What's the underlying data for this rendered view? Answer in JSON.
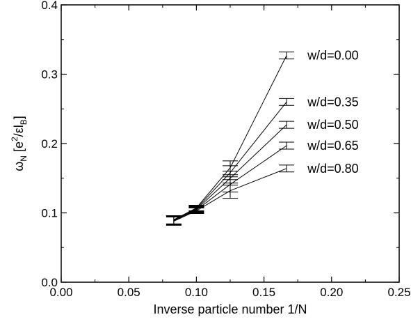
{
  "chart_data": {
    "type": "line",
    "xlabel": "Inverse particle number 1/N",
    "ylabel": {
      "base": "ω",
      "base_sub": "N",
      "open": " [e",
      "sup": "2",
      "mid": "/εl",
      "sub": "B",
      "close": "]"
    },
    "xlim": [
      0.0,
      0.25
    ],
    "ylim": [
      0.0,
      0.4
    ],
    "xticks": [
      "0.00",
      "0.05",
      "0.10",
      "0.15",
      "0.20",
      "0.25"
    ],
    "yticks": [
      "0.0",
      "0.1",
      "0.2",
      "0.3",
      "0.4"
    ],
    "grid": false,
    "x": [
      0.0833,
      0.1,
      0.125,
      0.1667
    ],
    "series": [
      {
        "name": "w/d=0.00",
        "y": [
          0.09,
          0.107,
          0.165,
          0.327
        ],
        "err": [
          0.006,
          0.004,
          0.01,
          0.005
        ]
      },
      {
        "name": "w/d=0.35",
        "y": [
          0.09,
          0.106,
          0.158,
          0.26
        ],
        "err": [
          0.006,
          0.004,
          0.01,
          0.005
        ]
      },
      {
        "name": "w/d=0.50",
        "y": [
          0.089,
          0.105,
          0.15,
          0.227
        ],
        "err": [
          0.006,
          0.004,
          0.01,
          0.005
        ]
      },
      {
        "name": "w/d=0.65",
        "y": [
          0.089,
          0.104,
          0.141,
          0.197
        ],
        "err": [
          0.006,
          0.004,
          0.011,
          0.005
        ]
      },
      {
        "name": "w/d=0.80",
        "y": [
          0.088,
          0.103,
          0.132,
          0.164
        ],
        "err": [
          0.006,
          0.004,
          0.011,
          0.005
        ]
      }
    ]
  }
}
